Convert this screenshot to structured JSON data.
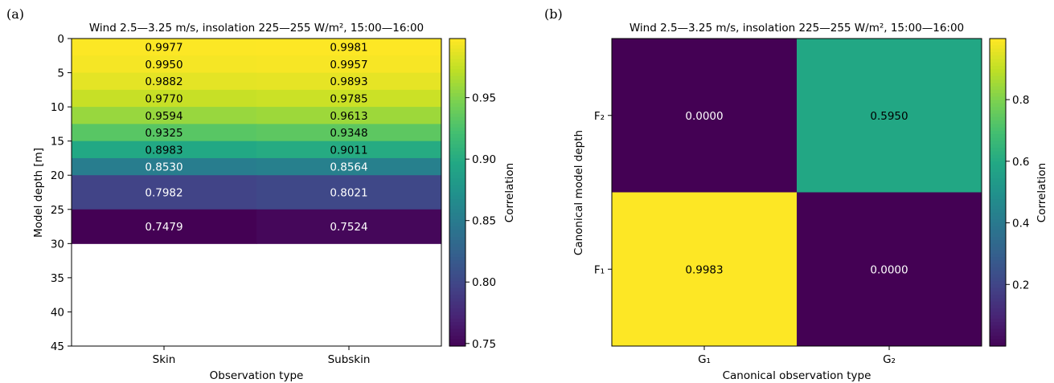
{
  "panels": [
    {
      "letter": "(a)",
      "title": "Wind 2.5—3.25 m/s, insolation 225—255 W/m², 15:00—16:00"
    },
    {
      "letter": "(b)",
      "title": "Wind 2.5—3.25 m/s, insolation 225—255 W/m², 15:00—16:00"
    }
  ],
  "chart_data": [
    {
      "type": "heatmap",
      "title": "Wind 2.5—3.25 m/s, insolation 225—255 W/m², 15:00—16:00",
      "xlabel": "Observation type",
      "ylabel": "Model depth [m]",
      "x_categories": [
        "Skin",
        "Subskin"
      ],
      "y_ticks": [
        "0",
        "5",
        "10",
        "15",
        "20",
        "25",
        "30",
        "35",
        "40",
        "45"
      ],
      "row_depths": [
        [
          0,
          2.5
        ],
        [
          2.5,
          5
        ],
        [
          5,
          7.5
        ],
        [
          7.5,
          10
        ],
        [
          10,
          12.5
        ],
        [
          12.5,
          15
        ],
        [
          15,
          17.5
        ],
        [
          17.5,
          20
        ],
        [
          20,
          25
        ],
        [
          25,
          30
        ]
      ],
      "values": [
        [
          0.9977,
          0.9981
        ],
        [
          0.995,
          0.9957
        ],
        [
          0.9882,
          0.9893
        ],
        [
          0.977,
          0.9785
        ],
        [
          0.9594,
          0.9613
        ],
        [
          0.9325,
          0.9348
        ],
        [
          0.8983,
          0.9011
        ],
        [
          0.853,
          0.8564
        ],
        [
          0.7982,
          0.8021
        ],
        [
          0.7479,
          0.7524
        ]
      ],
      "ylim": [
        45,
        0
      ],
      "colormap": "viridis",
      "colorbar": {
        "label": "Correlation",
        "range": [
          0.7479,
          0.9981
        ],
        "ticks": [
          "0.75",
          "0.80",
          "0.85",
          "0.90",
          "0.95"
        ]
      }
    },
    {
      "type": "heatmap",
      "title": "Wind 2.5—3.25 m/s, insolation 225—255 W/m², 15:00—16:00",
      "xlabel": "Canonical observation type",
      "ylabel": "Canonical model depth",
      "x_categories": [
        "G₁",
        "G₂"
      ],
      "y_categories": [
        "F₂",
        "F₁"
      ],
      "values": [
        [
          0.0,
          0.595
        ],
        [
          0.9983,
          0.0
        ]
      ],
      "colormap": "viridis",
      "colorbar": {
        "label": "Correlation",
        "range": [
          0.0,
          0.9983
        ],
        "ticks": [
          "0.2",
          "0.4",
          "0.6",
          "0.8"
        ]
      }
    }
  ]
}
